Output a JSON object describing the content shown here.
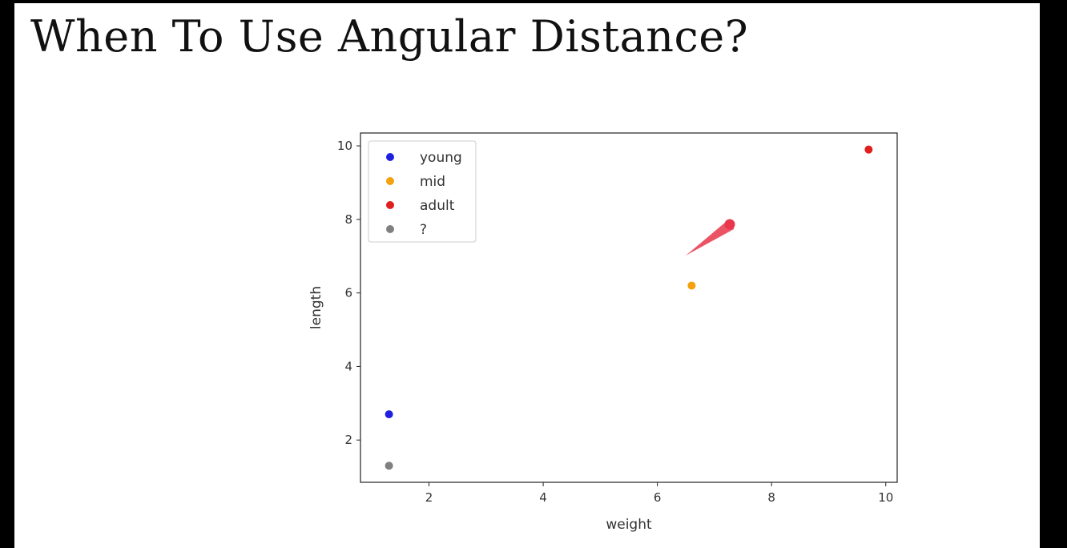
{
  "slide": {
    "title": "When To Use Angular Distance?"
  },
  "chart_data": {
    "type": "scatter",
    "title": "",
    "xlabel": "weight",
    "ylabel": "length",
    "xlim": [
      0.8,
      10.2
    ],
    "ylim": [
      0.85,
      10.35
    ],
    "xticks": [
      2,
      4,
      6,
      8,
      10
    ],
    "yticks": [
      2,
      4,
      6,
      8,
      10
    ],
    "grid": false,
    "legend_placement": "top-left",
    "series": [
      {
        "name": "young",
        "color": "#1f1fe0",
        "x": [
          1.3
        ],
        "y": [
          2.7
        ]
      },
      {
        "name": "mid",
        "color": "#f5a00f",
        "x": [
          6.6
        ],
        "y": [
          6.2
        ]
      },
      {
        "name": "adult",
        "color": "#e01f1f",
        "x": [
          9.7
        ],
        "y": [
          9.9
        ]
      },
      {
        "name": "?",
        "color": "#808080",
        "x": [
          1.3
        ],
        "y": [
          1.3
        ]
      }
    ]
  },
  "annotation": {
    "description": "pointer-stroke",
    "color": "#e8364a"
  }
}
